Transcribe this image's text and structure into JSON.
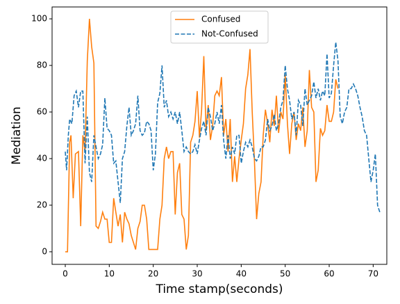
{
  "chart_data": {
    "type": "line",
    "xlabel": "Time stamp(seconds)",
    "ylabel": "Mediation",
    "xlim": [
      -3.0,
      73.1
    ],
    "ylim": [
      -5.4,
      105.1
    ],
    "xticks": [
      0,
      10,
      20,
      30,
      40,
      50,
      60,
      70
    ],
    "yticks": [
      0,
      20,
      40,
      60,
      80,
      100
    ],
    "legend": "upper center",
    "series": [
      {
        "name": "Confused",
        "color": "#ff7f0e",
        "dash": false,
        "x": [
          0,
          0.5,
          1,
          1.3,
          1.8,
          2.3,
          3,
          3.5,
          4,
          4.5,
          5,
          5.5,
          6,
          6.5,
          7,
          7.5,
          8,
          8.5,
          9,
          9.5,
          10,
          10.5,
          11,
          11.5,
          12,
          12.5,
          13,
          13.5,
          14,
          14.5,
          15,
          16,
          16.5,
          17,
          17.5,
          18,
          18.5,
          19,
          20,
          21,
          21.5,
          22,
          22.5,
          23,
          23.5,
          24,
          24.5,
          25,
          25.5,
          26,
          26.5,
          27,
          27.5,
          28,
          28.5,
          29,
          29.5,
          30,
          30.5,
          31,
          31.5,
          32,
          32.5,
          33,
          33.5,
          34,
          34.5,
          35,
          35.5,
          36,
          36.5,
          37,
          37.5,
          38,
          38.5,
          39,
          39.5,
          40,
          40.5,
          41,
          41.5,
          42,
          42.5,
          43,
          43.5,
          44,
          44.5,
          45,
          45.5,
          46,
          46.5,
          47,
          47.5,
          48,
          48.5,
          49,
          49.5,
          50,
          50.5,
          51,
          51.5,
          52,
          52.5,
          53,
          53.5,
          54,
          54.5,
          55,
          55.5,
          56,
          56.5,
          57,
          57.5,
          58,
          58.5,
          59,
          59.5,
          60,
          60.5,
          61,
          61.5,
          62
        ],
        "values": [
          0,
          0,
          47,
          50,
          23,
          42,
          43,
          11,
          50,
          43,
          82,
          100,
          88,
          81,
          11,
          10,
          13,
          17,
          14,
          14,
          4,
          4,
          23,
          17,
          11,
          16,
          4,
          17,
          14,
          12,
          7,
          1,
          10,
          13,
          20,
          20,
          14,
          1,
          1,
          1,
          14,
          20,
          40,
          45,
          40,
          43,
          43,
          16,
          34,
          38,
          16,
          14,
          1,
          7,
          47,
          50,
          56,
          69,
          49,
          61,
          84,
          52,
          63,
          48,
          54,
          67,
          69,
          67,
          75,
          50,
          57,
          43,
          57,
          30,
          41,
          30,
          40,
          48,
          55,
          70,
          76,
          87,
          60,
          39,
          14,
          25,
          30,
          50,
          61,
          55,
          47,
          61,
          54,
          67,
          51,
          60,
          57,
          76,
          55,
          42,
          55,
          60,
          48,
          55,
          52,
          62,
          45,
          52,
          78,
          62,
          60,
          30,
          35,
          53,
          50,
          52,
          63,
          56,
          56,
          60,
          74,
          70
        ]
      },
      {
        "name": "Not-Confused",
        "color": "#1f77b4",
        "dash": true,
        "x": [
          0,
          0.3,
          0.7,
          1,
          1.5,
          2,
          2.5,
          3,
          3.5,
          4,
          4.5,
          5,
          5.5,
          6,
          6.5,
          7,
          7.5,
          8,
          8.5,
          9,
          9.5,
          10,
          10.5,
          11,
          11.5,
          12,
          12.5,
          13,
          13.5,
          14,
          14.5,
          15,
          15.5,
          16,
          16.5,
          17,
          17.5,
          18,
          18.5,
          19,
          19.5,
          20,
          20.5,
          21,
          21.5,
          22,
          22.5,
          23,
          23.5,
          24,
          24.5,
          25,
          25.5,
          26,
          26.5,
          27,
          27.5,
          28,
          28.5,
          29,
          29.5,
          30,
          30.5,
          31,
          31.5,
          32,
          32.5,
          33,
          33.5,
          34,
          34.5,
          35,
          35.5,
          36,
          36.5,
          37,
          37.5,
          38,
          38.5,
          39,
          39.5,
          40,
          40.5,
          41,
          41.5,
          42,
          42.5,
          43,
          43.5,
          44,
          44.5,
          45,
          45.5,
          46,
          46.5,
          47,
          47.5,
          48,
          48.5,
          49,
          49.5,
          50,
          50.5,
          51,
          51.5,
          52,
          52.5,
          53,
          53.5,
          54,
          54.5,
          55,
          55.5,
          56,
          56.5,
          57,
          57.5,
          58,
          58.5,
          59,
          59.5,
          60,
          60.5,
          61,
          61.5,
          62,
          62.5,
          63,
          63.5,
          64,
          64.5,
          65,
          65.5,
          66,
          66.5,
          67,
          67.5,
          68,
          68.5,
          69,
          69.5,
          70,
          70.5,
          71,
          71.5
        ],
        "values": [
          43,
          35,
          50,
          57,
          55,
          67,
          69,
          62,
          69,
          69,
          38,
          58,
          34,
          30,
          50,
          45,
          40,
          42,
          46,
          66,
          53,
          52,
          50,
          38,
          39,
          30,
          21,
          40,
          43,
          54,
          62,
          50,
          52,
          55,
          67,
          52,
          50,
          51,
          56,
          55,
          52,
          35,
          42,
          64,
          68,
          80,
          62,
          65,
          58,
          60,
          57,
          60,
          55,
          60,
          52,
          43,
          45,
          43,
          42,
          43,
          46,
          42,
          48,
          53,
          56,
          50,
          62,
          58,
          52,
          55,
          60,
          55,
          63,
          48,
          40,
          50,
          40,
          45,
          42,
          50,
          50,
          38,
          43,
          47,
          45,
          48,
          45,
          40,
          39,
          41,
          45,
          45,
          48,
          57,
          52,
          54,
          59,
          52,
          55,
          62,
          65,
          80,
          70,
          65,
          57,
          60,
          50,
          65,
          63,
          54,
          70,
          63,
          65,
          67,
          73,
          66,
          70,
          65,
          69,
          67,
          85,
          66,
          68,
          80,
          90,
          82,
          58,
          55,
          60,
          62,
          70,
          70,
          72,
          70,
          67,
          62,
          58,
          52,
          50,
          40,
          30,
          35,
          42,
          20,
          17
        ]
      }
    ]
  }
}
